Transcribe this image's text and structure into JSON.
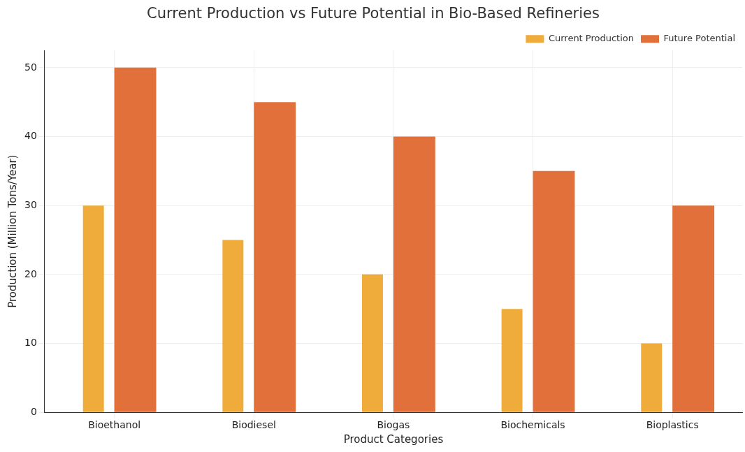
{
  "chart_data": {
    "type": "bar",
    "title": "Current Production vs Future Potential in Bio-Based Refineries",
    "xlabel": "Product Categories",
    "ylabel": "Production (Million Tons/Year)",
    "categories": [
      "Bioethanol",
      "Biodiesel",
      "Biogas",
      "Biochemicals",
      "Bioplastics"
    ],
    "series": [
      {
        "name": "Current Production",
        "color": "#f0ac3a",
        "values": [
          30,
          25,
          20,
          15,
          10
        ]
      },
      {
        "name": "Future Potential",
        "color": "#e2703a",
        "values": [
          50,
          45,
          40,
          35,
          30
        ]
      }
    ],
    "ylim": [
      0,
      52.5
    ],
    "yticks": [
      0,
      10,
      20,
      30,
      40,
      50
    ],
    "grid": true,
    "legend": "top right"
  }
}
